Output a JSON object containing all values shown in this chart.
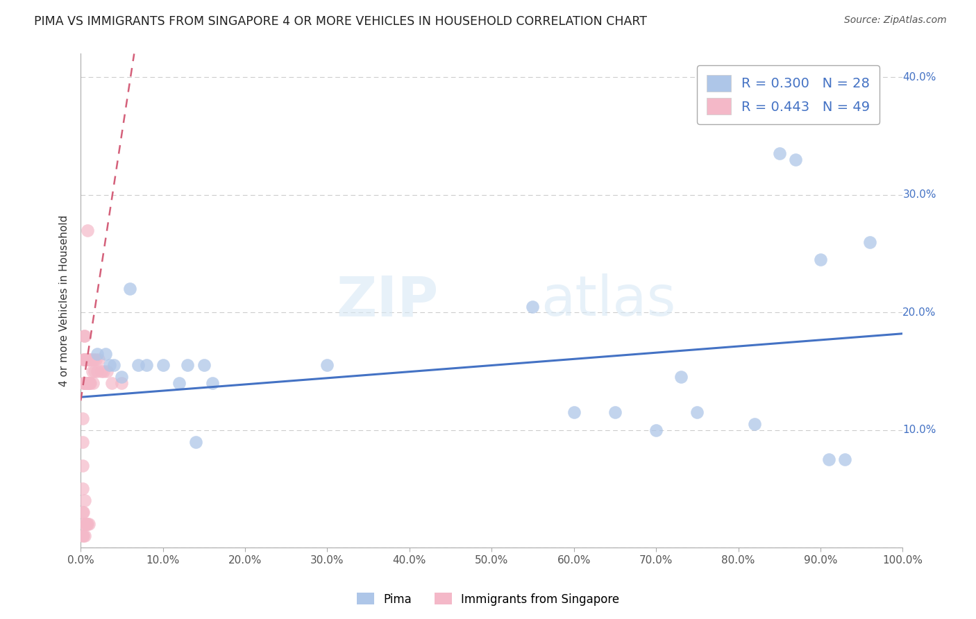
{
  "title": "PIMA VS IMMIGRANTS FROM SINGAPORE 4 OR MORE VEHICLES IN HOUSEHOLD CORRELATION CHART",
  "source": "Source: ZipAtlas.com",
  "ylabel": "4 or more Vehicles in Household",
  "legend_label1": "Pima",
  "legend_label2": "Immigrants from Singapore",
  "R_blue": 0.3,
  "N_blue": 28,
  "R_pink": 0.443,
  "N_pink": 49,
  "blue_color": "#aec6e8",
  "pink_color": "#f4b8c8",
  "blue_line_color": "#4472c4",
  "pink_line_color": "#d4607a",
  "watermark_zip": "ZIP",
  "watermark_atlas": "atlas",
  "xlim": [
    0.0,
    1.0
  ],
  "ylim": [
    0.0,
    0.42
  ],
  "background_color": "#ffffff",
  "blue_scatter_x": [
    0.02,
    0.03,
    0.035,
    0.04,
    0.05,
    0.06,
    0.07,
    0.08,
    0.1,
    0.12,
    0.13,
    0.14,
    0.15,
    0.16,
    0.3,
    0.55,
    0.6,
    0.65,
    0.7,
    0.73,
    0.75,
    0.82,
    0.85,
    0.87,
    0.9,
    0.91,
    0.93,
    0.96
  ],
  "blue_scatter_y": [
    0.165,
    0.165,
    0.155,
    0.155,
    0.145,
    0.22,
    0.155,
    0.155,
    0.155,
    0.14,
    0.155,
    0.09,
    0.155,
    0.14,
    0.155,
    0.205,
    0.115,
    0.115,
    0.1,
    0.145,
    0.115,
    0.105,
    0.335,
    0.33,
    0.245,
    0.075,
    0.075,
    0.26
  ],
  "pink_scatter_x": [
    0.002,
    0.002,
    0.002,
    0.002,
    0.002,
    0.002,
    0.003,
    0.003,
    0.003,
    0.003,
    0.004,
    0.004,
    0.004,
    0.004,
    0.005,
    0.005,
    0.005,
    0.005,
    0.005,
    0.006,
    0.006,
    0.006,
    0.007,
    0.007,
    0.007,
    0.008,
    0.008,
    0.008,
    0.009,
    0.009,
    0.01,
    0.01,
    0.01,
    0.011,
    0.011,
    0.012,
    0.013,
    0.014,
    0.015,
    0.016,
    0.017,
    0.018,
    0.02,
    0.022,
    0.025,
    0.028,
    0.032,
    0.038,
    0.05
  ],
  "pink_scatter_y": [
    0.01,
    0.03,
    0.05,
    0.07,
    0.09,
    0.11,
    0.01,
    0.03,
    0.14,
    0.16,
    0.02,
    0.14,
    0.16,
    0.18,
    0.01,
    0.04,
    0.14,
    0.16,
    0.18,
    0.02,
    0.14,
    0.16,
    0.02,
    0.14,
    0.16,
    0.02,
    0.14,
    0.27,
    0.14,
    0.16,
    0.02,
    0.14,
    0.16,
    0.14,
    0.16,
    0.14,
    0.16,
    0.15,
    0.14,
    0.16,
    0.15,
    0.16,
    0.15,
    0.16,
    0.15,
    0.15,
    0.15,
    0.14,
    0.14
  ],
  "blue_line_x": [
    0.0,
    1.0
  ],
  "blue_line_y": [
    0.128,
    0.182
  ],
  "pink_line_x": [
    0.0,
    0.065
  ],
  "pink_line_y": [
    0.125,
    0.42
  ]
}
